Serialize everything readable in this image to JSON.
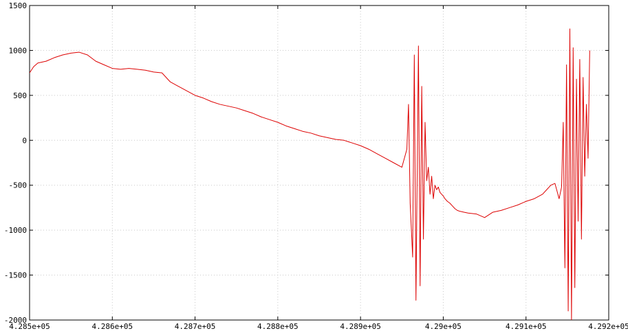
{
  "chart_data": {
    "type": "line",
    "title": "",
    "xlabel": "",
    "ylabel": "",
    "xlim": [
      428500,
      429200
    ],
    "ylim": [
      -2000,
      1500
    ],
    "grid": true,
    "grid_style": "dotted",
    "colors": {
      "series": "#dd0000",
      "grid": "#c8c8c8",
      "axis": "#000000",
      "background": "#ffffff"
    },
    "x_ticks": [
      {
        "value": 428500,
        "label": "4.285e+05"
      },
      {
        "value": 428600,
        "label": "4.286e+05"
      },
      {
        "value": 428700,
        "label": "4.287e+05"
      },
      {
        "value": 428800,
        "label": "4.288e+05"
      },
      {
        "value": 428900,
        "label": "4.289e+05"
      },
      {
        "value": 429000,
        "label": "4.29e+05"
      },
      {
        "value": 429100,
        "label": "4.291e+05"
      },
      {
        "value": 429200,
        "label": "4.292e+05"
      }
    ],
    "y_ticks": [
      {
        "value": 1500,
        "label": "1500"
      },
      {
        "value": 1000,
        "label": "1000"
      },
      {
        "value": 500,
        "label": "500"
      },
      {
        "value": 0,
        "label": "0"
      },
      {
        "value": -500,
        "label": "-500"
      },
      {
        "value": -1000,
        "label": "-1000"
      },
      {
        "value": -1500,
        "label": "-1500"
      },
      {
        "value": -2000,
        "label": "-2000"
      }
    ],
    "series": [
      {
        "x": [
          428500,
          428505,
          428510,
          428520,
          428530,
          428540,
          428550,
          428560,
          428570,
          428580,
          428590,
          428600,
          428610,
          428620,
          428630,
          428640,
          428650,
          428660,
          428670,
          428680,
          428690,
          428700,
          428710,
          428720,
          428730,
          428740,
          428750,
          428760,
          428770,
          428780,
          428790,
          428800,
          428810,
          428820,
          428830,
          428840,
          428850,
          428860,
          428870,
          428880,
          428890,
          428900,
          428910,
          428920,
          428930,
          428940,
          428950,
          428956,
          428958,
          428960,
          428963,
          428965,
          428967,
          428970,
          428972,
          428974,
          428976,
          428978,
          428980,
          428982,
          428984,
          428986,
          428988,
          428990,
          428992,
          428994,
          428996,
          428998,
          429000,
          429002,
          429005,
          429008,
          429011,
          429014,
          429017,
          429020,
          429025,
          429030,
          429040,
          429050,
          429060,
          429070,
          429080,
          429090,
          429100,
          429110,
          429120,
          429125,
          429130,
          429135,
          429140,
          429143,
          429145,
          429147,
          429149,
          429151,
          429153,
          429155,
          429157,
          429159,
          429161,
          429163,
          429165,
          429167,
          429169,
          429171,
          429173,
          429175,
          429177
        ],
        "y": [
          750,
          820,
          860,
          880,
          920,
          950,
          970,
          980,
          950,
          880,
          840,
          800,
          790,
          800,
          790,
          780,
          760,
          750,
          650,
          600,
          550,
          500,
          470,
          430,
          400,
          380,
          360,
          330,
          300,
          260,
          230,
          200,
          160,
          130,
          100,
          80,
          50,
          30,
          10,
          0,
          -30,
          -60,
          -100,
          -150,
          -200,
          -250,
          -300,
          -100,
          400,
          -700,
          -1300,
          950,
          -1780,
          1050,
          -1620,
          600,
          -1100,
          200,
          -450,
          -300,
          -600,
          -400,
          -650,
          -500,
          -550,
          -520,
          -580,
          -600,
          -620,
          -650,
          -680,
          -700,
          -730,
          -760,
          -780,
          -790,
          -800,
          -810,
          -820,
          -860,
          -800,
          -780,
          -750,
          -720,
          -680,
          -650,
          -600,
          -550,
          -500,
          -480,
          -650,
          -520,
          200,
          -1420,
          840,
          -1900,
          1240,
          -2000,
          1030,
          -1640,
          680,
          -900,
          900,
          -1100,
          700,
          -400,
          400,
          -200,
          1000
        ]
      }
    ]
  }
}
